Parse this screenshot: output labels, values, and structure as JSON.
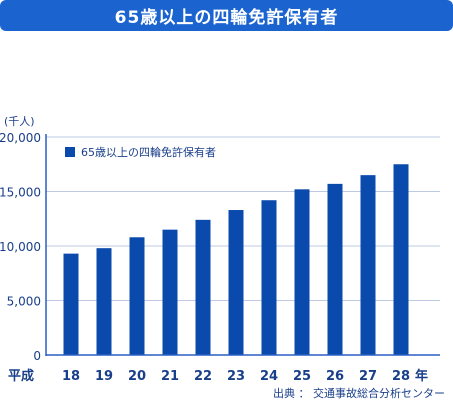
{
  "banner": {
    "title": "65歳以上の四輪免許保有者"
  },
  "colors": {
    "banner": "#1b64d0",
    "bar": "#0a4aad",
    "grid": "#bfc9e3",
    "axis": "#2a5fc4",
    "text": "#1a3f8a"
  },
  "chart_data": {
    "type": "bar",
    "title": "65歳以上の四輪免許保有者",
    "unit_label": "(千人)",
    "x_prefix": "平成",
    "x_suffix": "年",
    "categories": [
      "18",
      "19",
      "20",
      "21",
      "22",
      "23",
      "24",
      "25",
      "26",
      "27",
      "28"
    ],
    "series": [
      {
        "name": "65歳以上の四輪免許保有者",
        "values": [
          9300,
          9800,
          10800,
          11500,
          12400,
          13300,
          14200,
          15200,
          15700,
          16500,
          17500
        ]
      }
    ],
    "yticks": [
      "0",
      "5,000",
      "10,000",
      "15,000",
      "20,000"
    ],
    "ylim": [
      0,
      20000
    ],
    "grid": true,
    "legend": "top-left",
    "source": "出典 ： 交通事故総合分析センター"
  }
}
